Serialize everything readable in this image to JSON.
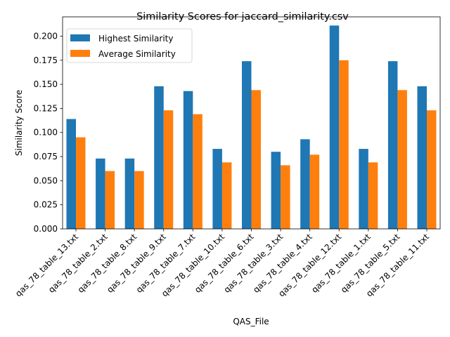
{
  "chart_data": {
    "type": "bar",
    "title": "Similarity Scores for jaccard_similarity.csv",
    "xlabel": "QAS_File",
    "ylabel": "Similarity Score",
    "ylim": [
      0,
      0.22
    ],
    "yticks": [
      0.0,
      0.025,
      0.05,
      0.075,
      0.1,
      0.125,
      0.15,
      0.175,
      0.2
    ],
    "ytick_labels": [
      "0.000",
      "0.025",
      "0.050",
      "0.075",
      "0.100",
      "0.125",
      "0.150",
      "0.175",
      "0.200"
    ],
    "legend_position": "top-left",
    "grid": false,
    "categories": [
      "qas_78_table_13.txt",
      "qas_78_table_2.txt",
      "qas_78_table_8.txt",
      "qas_78_table_9.txt",
      "qas_78_table_7.txt",
      "qas_78_table_10.txt",
      "qas_78_table_6.txt",
      "qas_78_table_3.txt",
      "qas_78_table_4.txt",
      "qas_78_table_12.txt",
      "qas_78_table_1.txt",
      "qas_78_table_5.txt",
      "qas_78_table_11.txt"
    ],
    "series": [
      {
        "name": "Highest Similarity",
        "color": "#1f77b4",
        "values": [
          0.114,
          0.073,
          0.073,
          0.148,
          0.143,
          0.083,
          0.174,
          0.08,
          0.093,
          0.211,
          0.083,
          0.174,
          0.148
        ]
      },
      {
        "name": "Average Similarity",
        "color": "#ff7f0e",
        "values": [
          0.095,
          0.06,
          0.06,
          0.123,
          0.119,
          0.069,
          0.144,
          0.066,
          0.077,
          0.175,
          0.069,
          0.144,
          0.123
        ]
      }
    ]
  }
}
